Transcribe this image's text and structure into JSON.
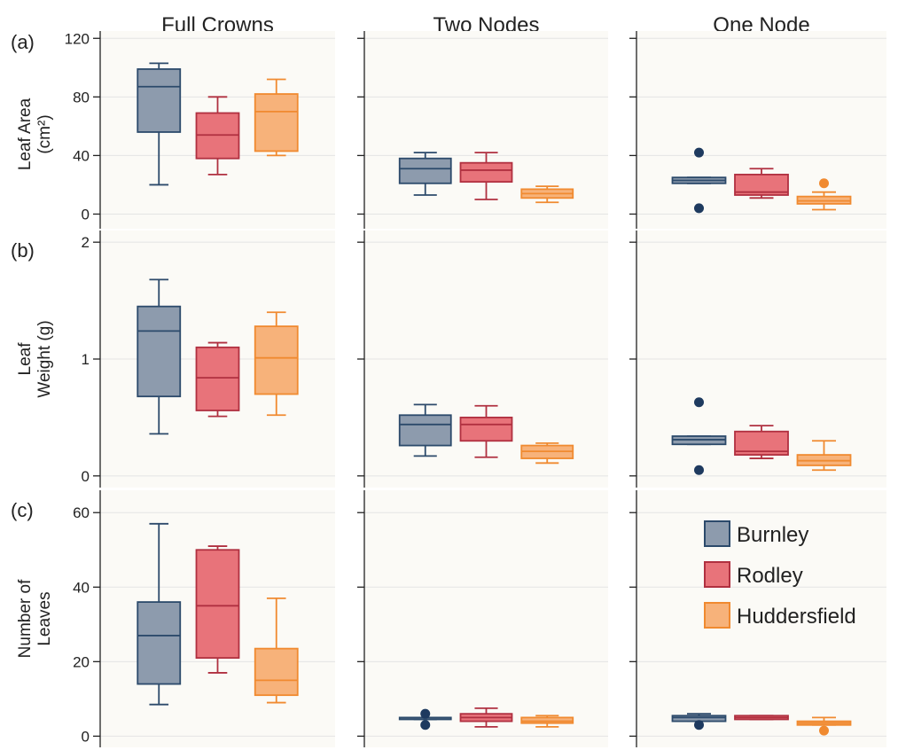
{
  "chart_data": [
    {
      "type": "box",
      "row_tag": "(a)",
      "ylabel_lines": [
        "Leaf Area",
        "(cm²)"
      ],
      "ylim": [
        -10,
        125
      ],
      "yticks": [
        0,
        40,
        80,
        120
      ],
      "columns": [
        "Full Crowns",
        "Two Nodes",
        "One Node"
      ],
      "panels": [
        {
          "title": "Full Crowns",
          "series": [
            {
              "name": "Burnley",
              "min": 20,
              "q1": 56,
              "median": 87,
              "q3": 99,
              "max": 103,
              "outliers": []
            },
            {
              "name": "Rodley",
              "min": 27,
              "q1": 38,
              "median": 54,
              "q3": 69,
              "max": 80,
              "outliers": []
            },
            {
              "name": "Huddersfield",
              "min": 40,
              "q1": 43,
              "median": 70,
              "q3": 82,
              "max": 92,
              "outliers": []
            }
          ]
        },
        {
          "title": "Two Nodes",
          "series": [
            {
              "name": "Burnley",
              "min": 13,
              "q1": 21,
              "median": 31,
              "q3": 38,
              "max": 42,
              "outliers": []
            },
            {
              "name": "Rodley",
              "min": 10,
              "q1": 22,
              "median": 30,
              "q3": 35,
              "max": 42,
              "outliers": []
            },
            {
              "name": "Huddersfield",
              "min": 8,
              "q1": 11,
              "median": 14,
              "q3": 17,
              "max": 19,
              "outliers": []
            }
          ]
        },
        {
          "title": "One Node",
          "series": [
            {
              "name": "Burnley",
              "min": 21,
              "q1": 21,
              "median": 23,
              "q3": 25,
              "max": 25,
              "outliers": [
                4,
                42
              ]
            },
            {
              "name": "Rodley",
              "min": 11,
              "q1": 13,
              "median": 15,
              "q3": 27,
              "max": 31,
              "outliers": []
            },
            {
              "name": "Huddersfield",
              "min": 3,
              "q1": 7,
              "median": 9,
              "q3": 12,
              "max": 15,
              "outliers": [
                21
              ]
            }
          ]
        }
      ]
    },
    {
      "type": "box",
      "row_tag": "(b)",
      "ylabel_lines": [
        "Leaf",
        "Weight (g)"
      ],
      "ylim": [
        -0.1,
        2.1
      ],
      "yticks": [
        0,
        1,
        2
      ],
      "columns": [
        "Full Crowns",
        "Two Nodes",
        "One Node"
      ],
      "panels": [
        {
          "title": "Full Crowns",
          "series": [
            {
              "name": "Burnley",
              "min": 0.36,
              "q1": 0.68,
              "median": 1.24,
              "q3": 1.45,
              "max": 1.68,
              "outliers": []
            },
            {
              "name": "Rodley",
              "min": 0.51,
              "q1": 0.56,
              "median": 0.84,
              "q3": 1.1,
              "max": 1.14,
              "outliers": []
            },
            {
              "name": "Huddersfield",
              "min": 0.52,
              "q1": 0.7,
              "median": 1.01,
              "q3": 1.28,
              "max": 1.4,
              "outliers": []
            }
          ]
        },
        {
          "title": "Two Nodes",
          "series": [
            {
              "name": "Burnley",
              "min": 0.17,
              "q1": 0.26,
              "median": 0.44,
              "q3": 0.52,
              "max": 0.61,
              "outliers": []
            },
            {
              "name": "Rodley",
              "min": 0.16,
              "q1": 0.3,
              "median": 0.44,
              "q3": 0.5,
              "max": 0.6,
              "outliers": []
            },
            {
              "name": "Huddersfield",
              "min": 0.11,
              "q1": 0.15,
              "median": 0.21,
              "q3": 0.26,
              "max": 0.28,
              "outliers": []
            }
          ]
        },
        {
          "title": "One Node",
          "series": [
            {
              "name": "Burnley",
              "min": 0.27,
              "q1": 0.27,
              "median": 0.31,
              "q3": 0.34,
              "max": 0.34,
              "outliers": [
                0.05,
                0.63
              ]
            },
            {
              "name": "Rodley",
              "min": 0.15,
              "q1": 0.18,
              "median": 0.21,
              "q3": 0.38,
              "max": 0.43,
              "outliers": []
            },
            {
              "name": "Huddersfield",
              "min": 0.05,
              "q1": 0.09,
              "median": 0.13,
              "q3": 0.18,
              "max": 0.3,
              "outliers": []
            }
          ]
        }
      ]
    },
    {
      "type": "box",
      "row_tag": "(c)",
      "ylabel_lines": [
        "Number of",
        "Leaves"
      ],
      "ylim": [
        -3,
        66
      ],
      "yticks": [
        0,
        20,
        40,
        60
      ],
      "columns": [
        "Full Crowns",
        "Two Nodes",
        "One Node"
      ],
      "panels": [
        {
          "title": "Full Crowns",
          "series": [
            {
              "name": "Burnley",
              "min": 8.5,
              "q1": 14,
              "median": 27,
              "q3": 36,
              "max": 57,
              "outliers": []
            },
            {
              "name": "Rodley",
              "min": 17,
              "q1": 21,
              "median": 35,
              "q3": 50,
              "max": 51,
              "outliers": []
            },
            {
              "name": "Huddersfield",
              "min": 9,
              "q1": 11,
              "median": 15,
              "q3": 23.5,
              "max": 37,
              "outliers": []
            }
          ]
        },
        {
          "title": "Two Nodes",
          "series": [
            {
              "name": "Burnley",
              "min": 4.5,
              "q1": 4.5,
              "median": 5,
              "q3": 5,
              "max": 5,
              "outliers": [
                3,
                6
              ]
            },
            {
              "name": "Rodley",
              "min": 2.5,
              "q1": 4,
              "median": 5,
              "q3": 6,
              "max": 7.5,
              "outliers": []
            },
            {
              "name": "Huddersfield",
              "min": 2.5,
              "q1": 3.5,
              "median": 4,
              "q3": 5,
              "max": 5.5,
              "outliers": []
            }
          ]
        },
        {
          "title": "One Node",
          "series": [
            {
              "name": "Burnley",
              "min": 4,
              "q1": 4,
              "median": 5,
              "q3": 5.5,
              "max": 6,
              "outliers": [
                3
              ]
            },
            {
              "name": "Rodley",
              "min": 4.5,
              "q1": 4.5,
              "median": 5,
              "q3": 5.5,
              "max": 5.5,
              "outliers": []
            },
            {
              "name": "Huddersfield",
              "min": 3,
              "q1": 3,
              "median": 3.5,
              "q3": 4,
              "max": 5,
              "outliers": [
                1.5
              ]
            }
          ]
        }
      ]
    }
  ],
  "legend": {
    "placement": "right, bottom row, One Node column",
    "items": [
      {
        "name": "Burnley",
        "fill": "#8d9bad",
        "stroke": "#2c4a6b"
      },
      {
        "name": "Rodley",
        "fill": "#e8737a",
        "stroke": "#b03040"
      },
      {
        "name": "Huddersfield",
        "fill": "#f7b27a",
        "stroke": "#f08a30"
      }
    ]
  },
  "colors": {
    "panel_bg": "#fbfaf6",
    "grid": "#e4e4e4",
    "axis": "#222222",
    "outlier": {
      "Burnley": "#1e3a5f",
      "Rodley": "#b03040",
      "Huddersfield": "#f08a30"
    }
  },
  "grid": true
}
